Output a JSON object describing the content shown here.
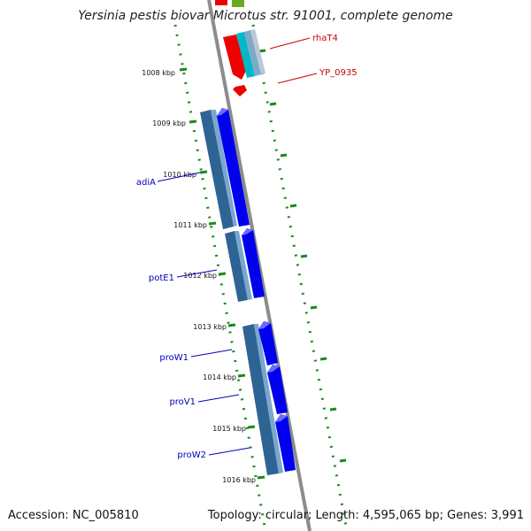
{
  "title": "Yersinia pestis biovar Microtus str. 91001, complete genome",
  "footer": {
    "accession": "Accession: NC_005810",
    "summary": "Topology: circular; Length: 4,595,065 bp; Genes: 3,991"
  },
  "colors": {
    "backbone": "#8c8c8c",
    "tick": "#1a8a1a",
    "forward_gene": "#0000ee",
    "reverse_cds": "#3a78b0",
    "red_gene": "#ee0000",
    "cyan_gene": "#00b8c8",
    "blue_label": "#0000bb",
    "red_label": "#cc0000"
  },
  "ticks": [
    "1008 kbp",
    "1009 kbp",
    "1010 kbp",
    "1011 kbp",
    "1012 kbp",
    "1013 kbp",
    "1014 kbp",
    "1015 kbp",
    "1016 kbp"
  ],
  "gene_labels": [
    "rhaT4",
    "YP_0935",
    "adiA",
    "potE1",
    "proW1",
    "proV1",
    "proW2"
  ]
}
